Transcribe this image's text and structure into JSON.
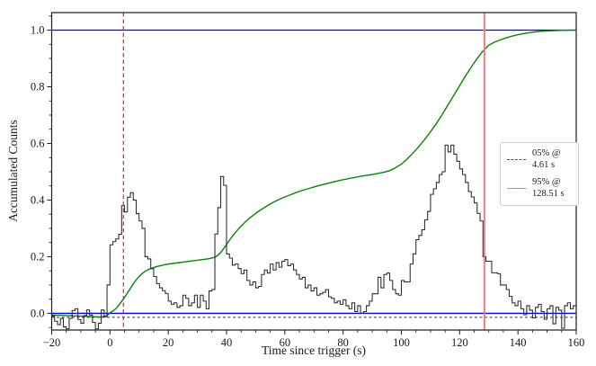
{
  "chart_data": {
    "type": "line",
    "title": "",
    "xlabel": "Time since trigger (s)",
    "ylabel": "Accumulated Counts",
    "xlim": [
      -20,
      160
    ],
    "ylim": [
      -0.059,
      1.062
    ],
    "grid": false,
    "x_ticks": {
      "values": [
        -20,
        0,
        20,
        40,
        60,
        80,
        100,
        120,
        140,
        160
      ],
      "labels": [
        "−20",
        "0",
        "20",
        "40",
        "60",
        "80",
        "100",
        "120",
        "140",
        "160"
      ],
      "minor_step": 5
    },
    "y_ticks": {
      "values": [
        0.0,
        0.2,
        0.4,
        0.6,
        0.8,
        1.0
      ],
      "labels": [
        "0.0",
        "0.2",
        "0.4",
        "0.6",
        "0.8",
        "1.0"
      ],
      "minor_step": 0.05
    },
    "series": [
      {
        "name": "lightcurve-histogram",
        "type": "step",
        "color": "#2a2a2a",
        "bin_start": -20,
        "bin_width": 1,
        "values": [
          -0.01,
          -0.028,
          -0.04,
          -0.018,
          -0.048,
          -0.055,
          -0.018,
          0.01,
          0.016,
          -0.022,
          -0.035,
          -0.008,
          0.012,
          -0.006,
          -0.032,
          -0.055,
          -0.035,
          0.012,
          -0.012,
          0.1,
          0.242,
          0.253,
          0.263,
          0.279,
          0.38,
          0.358,
          0.41,
          0.426,
          0.4,
          0.352,
          0.326,
          0.3,
          0.2,
          0.192,
          0.158,
          0.13,
          0.105,
          0.09,
          0.08,
          0.07,
          0.043,
          0.032,
          0.037,
          0.021,
          0.027,
          0.064,
          0.053,
          0.027,
          0.037,
          0.064,
          0.021,
          0.064,
          0.043,
          0.016,
          0.079,
          0.084,
          0.28,
          0.373,
          0.483,
          0.452,
          0.21,
          0.195,
          0.17,
          0.174,
          0.158,
          0.14,
          0.153,
          0.116,
          0.1,
          0.111,
          0.09,
          0.095,
          0.137,
          0.153,
          0.142,
          0.174,
          0.153,
          0.179,
          0.163,
          0.184,
          0.19,
          0.168,
          0.174,
          0.153,
          0.137,
          0.121,
          0.127,
          0.09,
          0.1,
          0.079,
          0.09,
          0.064,
          0.069,
          0.074,
          0.084,
          0.058,
          0.053,
          0.037,
          0.043,
          0.032,
          0.048,
          0.027,
          0.016,
          0.037,
          0.006,
          0.027,
          0.0,
          0.006,
          0.027,
          0.043,
          0.069,
          0.069,
          0.127,
          0.09,
          0.137,
          0.142,
          0.116,
          0.084,
          0.069,
          0.064,
          0.116,
          0.111,
          0.111,
          0.174,
          0.21,
          0.26,
          0.275,
          0.295,
          0.33,
          0.36,
          0.42,
          0.44,
          0.462,
          0.49,
          0.5,
          0.594,
          0.57,
          0.594,
          0.562,
          0.537,
          0.51,
          0.49,
          0.462,
          0.43,
          0.411,
          0.39,
          0.353,
          0.326,
          0.2,
          0.184,
          0.184,
          0.143,
          0.143,
          0.14,
          0.1,
          0.1,
          0.084,
          0.06,
          0.037,
          0.027,
          0.043,
          0.016,
          -0.005,
          0.027,
          0.011,
          -0.016,
          0.021,
          0.032,
          0.006,
          -0.021,
          0.016,
          0.027,
          -0.037,
          0.021,
          0.011,
          -0.053,
          0.027,
          0.037,
          0.016,
          0.027
        ]
      },
      {
        "name": "accumulated-counts-curve",
        "type": "line",
        "color": "#0b820b",
        "points": [
          [
            -20,
            -0.006
          ],
          [
            -15,
            -0.008
          ],
          [
            -10,
            -0.01
          ],
          [
            -6,
            -0.012
          ],
          [
            -3,
            -0.013
          ],
          [
            -1,
            -0.008
          ],
          [
            0,
            0.002
          ],
          [
            1,
            0.008
          ],
          [
            2,
            0.016
          ],
          [
            3,
            0.028
          ],
          [
            4,
            0.042
          ],
          [
            4.61,
            0.05
          ],
          [
            5,
            0.056
          ],
          [
            6,
            0.072
          ],
          [
            7,
            0.088
          ],
          [
            8,
            0.104
          ],
          [
            9,
            0.118
          ],
          [
            10,
            0.13
          ],
          [
            11,
            0.14
          ],
          [
            12,
            0.148
          ],
          [
            13,
            0.154
          ],
          [
            14,
            0.158
          ],
          [
            16,
            0.165
          ],
          [
            18,
            0.17
          ],
          [
            20,
            0.174
          ],
          [
            23,
            0.178
          ],
          [
            26,
            0.182
          ],
          [
            29,
            0.186
          ],
          [
            32,
            0.19
          ],
          [
            34,
            0.193
          ],
          [
            36,
            0.198
          ],
          [
            37,
            0.205
          ],
          [
            38,
            0.215
          ],
          [
            39,
            0.228
          ],
          [
            40,
            0.243
          ],
          [
            41,
            0.258
          ],
          [
            42,
            0.272
          ],
          [
            43,
            0.285
          ],
          [
            44,
            0.297
          ],
          [
            45,
            0.308
          ],
          [
            46,
            0.318
          ],
          [
            47,
            0.328
          ],
          [
            48,
            0.337
          ],
          [
            50,
            0.353
          ],
          [
            52,
            0.367
          ],
          [
            54,
            0.38
          ],
          [
            56,
            0.392
          ],
          [
            58,
            0.402
          ],
          [
            60,
            0.411
          ],
          [
            62,
            0.419
          ],
          [
            64,
            0.427
          ],
          [
            66,
            0.434
          ],
          [
            68,
            0.44
          ],
          [
            70,
            0.446
          ],
          [
            72,
            0.452
          ],
          [
            74,
            0.457
          ],
          [
            76,
            0.462
          ],
          [
            78,
            0.467
          ],
          [
            80,
            0.472
          ],
          [
            82,
            0.476
          ],
          [
            84,
            0.48
          ],
          [
            86,
            0.484
          ],
          [
            88,
            0.487
          ],
          [
            90,
            0.49
          ],
          [
            92,
            0.494
          ],
          [
            94,
            0.498
          ],
          [
            96,
            0.504
          ],
          [
            98,
            0.514
          ],
          [
            100,
            0.527
          ],
          [
            102,
            0.545
          ],
          [
            104,
            0.566
          ],
          [
            106,
            0.589
          ],
          [
            108,
            0.614
          ],
          [
            110,
            0.641
          ],
          [
            112,
            0.67
          ],
          [
            114,
            0.702
          ],
          [
            116,
            0.736
          ],
          [
            118,
            0.77
          ],
          [
            120,
            0.804
          ],
          [
            122,
            0.838
          ],
          [
            124,
            0.87
          ],
          [
            126,
            0.9
          ],
          [
            128,
            0.926
          ],
          [
            128.51,
            0.932
          ],
          [
            130,
            0.947
          ],
          [
            132,
            0.958
          ],
          [
            134,
            0.966
          ],
          [
            136,
            0.973
          ],
          [
            138,
            0.979
          ],
          [
            140,
            0.984
          ],
          [
            142,
            0.988
          ],
          [
            144,
            0.991
          ],
          [
            146,
            0.994
          ],
          [
            148,
            0.996
          ],
          [
            150,
            0.997
          ],
          [
            152,
            0.998
          ],
          [
            154,
            0.999
          ],
          [
            156,
            0.9995
          ],
          [
            158,
            1.0
          ],
          [
            160,
            1.0
          ]
        ]
      },
      {
        "name": "unity-reference-line",
        "type": "hline",
        "y": 1.0,
        "color": "#0000ee",
        "dash": false
      },
      {
        "name": "zero-reference-line",
        "type": "hline",
        "y": 0.0,
        "color": "#0000ee",
        "dash": false
      },
      {
        "name": "background-level-line",
        "type": "hline",
        "y": -0.014,
        "color": "#333333",
        "dash": true
      },
      {
        "name": "t05-marker-line",
        "type": "vline",
        "x": 4.61,
        "color": "#e32222",
        "dash": true
      },
      {
        "name": "t95-marker-line",
        "type": "vline",
        "x": 128.51,
        "color": "#f47b7b",
        "dash": false
      }
    ],
    "legend": {
      "position": "right-center",
      "entries": [
        {
          "label_lines": [
            "05% @",
            "4.61 s"
          ],
          "style": "dashed",
          "color": "#e32222"
        },
        {
          "label_lines": [
            "95% @",
            "128.51 s"
          ],
          "style": "solid",
          "color": "#f47b7b"
        }
      ]
    }
  }
}
